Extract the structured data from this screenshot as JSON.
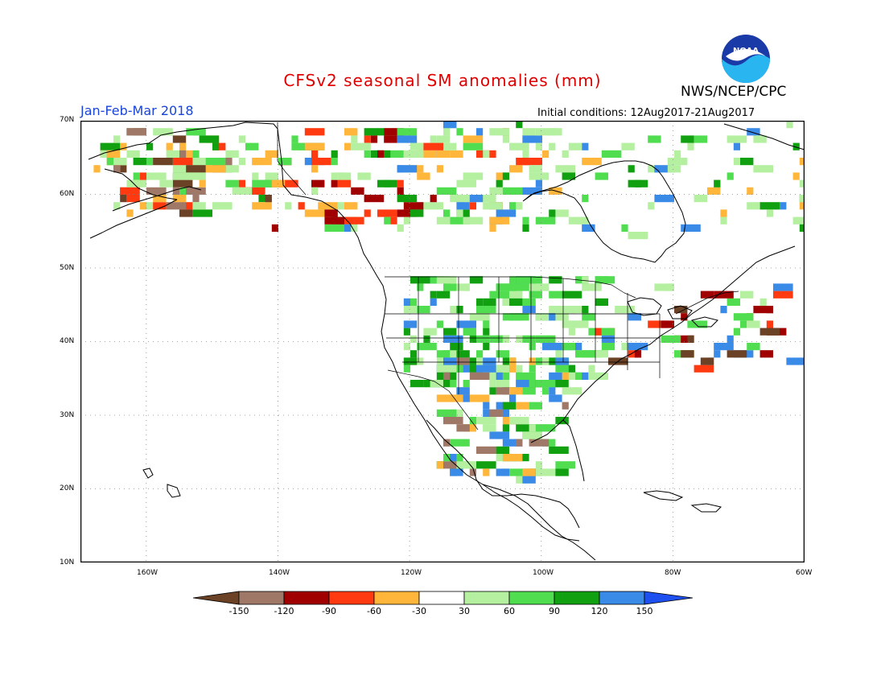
{
  "header": {
    "title": "CFSv2 seasonal SM anomalies (mm)",
    "agency": "NWS/NCEP/CPC",
    "season": "Jan-Feb-Mar 2018",
    "initial_conditions": "Initial conditions: 12Aug2017-21Aug2017",
    "logo_text": "NOAA"
  },
  "map": {
    "lat_labels": [
      "70N",
      "60N",
      "50N",
      "40N",
      "30N",
      "20N",
      "10N"
    ],
    "lon_labels": [
      "160W",
      "140W",
      "120W",
      "100W",
      "80W",
      "60W"
    ],
    "lat_range": [
      10,
      70
    ],
    "lon_range": [
      -170,
      -60
    ],
    "gridlines": "dotted"
  },
  "colorbar": {
    "labels": [
      "-150",
      "-120",
      "-90",
      "-60",
      "-30",
      "30",
      "60",
      "90",
      "120",
      "150"
    ],
    "colors": [
      "#6b4226",
      "#a07868",
      "#a00000",
      "#ff3a10",
      "#ffb63a",
      "#ffffff",
      "#b4f0a0",
      "#50de50",
      "#10a010",
      "#3a8ae8",
      "#1e50f0"
    ]
  },
  "colors": {
    "title": "#e00000",
    "season": "#1a44d8"
  }
}
